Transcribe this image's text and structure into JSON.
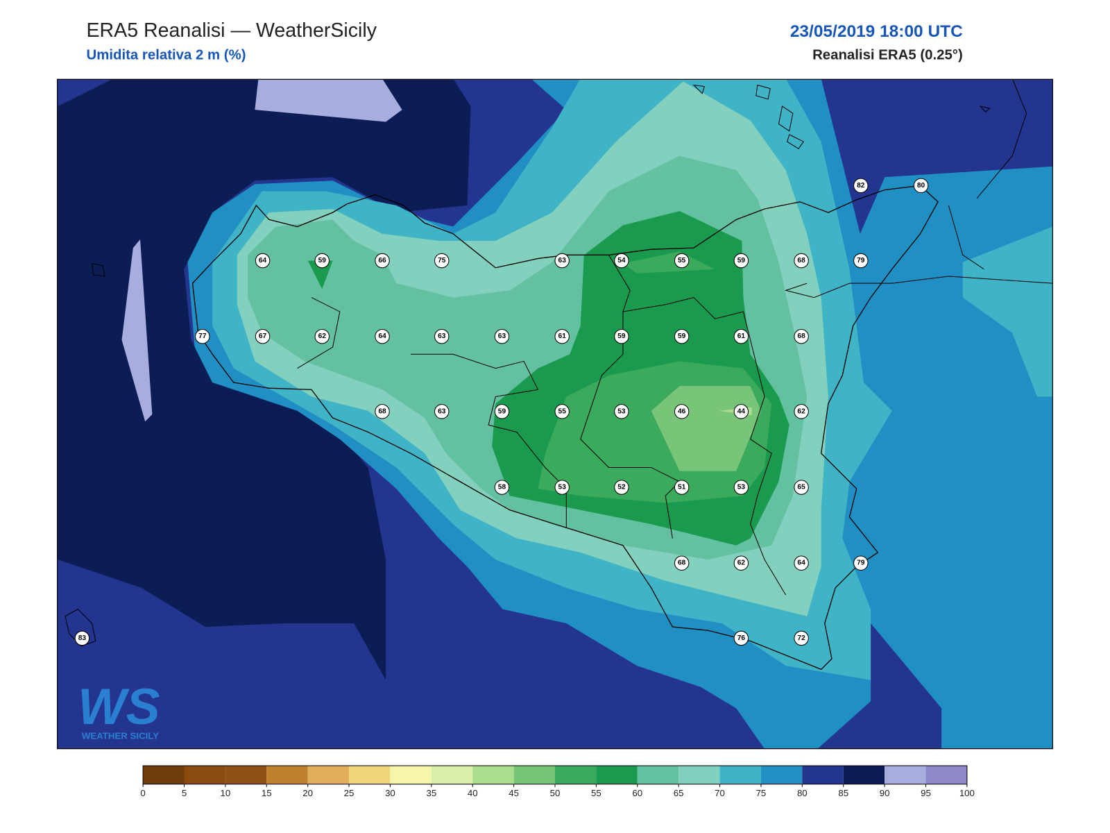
{
  "header": {
    "title": "ERA5 Reanalisi — WeatherSicily",
    "subtitle": "Umidita relativa 2 m (%)",
    "date": "23/05/2019 18:00 UTC",
    "source": "Reanalisi ERA5 (0.25°)"
  },
  "stations": [
    64,
    59,
    66,
    75,
    63,
    54,
    55,
    59,
    68,
    79,
    82,
    80,
    77,
    67,
    62,
    64,
    63,
    63,
    61,
    59,
    59,
    61,
    68,
    68,
    63,
    59,
    55,
    53,
    46,
    44,
    62,
    58,
    53,
    52,
    51,
    53,
    65,
    68,
    62,
    64,
    79,
    83,
    76,
    72
  ],
  "logo": {
    "letters": "WS",
    "text": "WEATHER SICILY"
  },
  "colorbar": {
    "ticks": [
      0,
      5,
      10,
      15,
      20,
      25,
      30,
      35,
      40,
      45,
      50,
      55,
      60,
      65,
      70,
      75,
      80,
      85,
      90,
      95,
      100
    ],
    "colors": [
      "#6e3d0a",
      "#8a4b0f",
      "#8f5114",
      "#c0812c",
      "#e0ae5b",
      "#f0d57c",
      "#f6f6aa",
      "#d9efaa",
      "#aadd8e",
      "#78c57a",
      "#3caa5c",
      "#1a9a4f",
      "#63c1a1",
      "#83d0be",
      "#3eb4c6",
      "#2090c4",
      "#24358f",
      "#0c1d56",
      "#a7addd",
      "#8d89c9"
    ]
  }
}
